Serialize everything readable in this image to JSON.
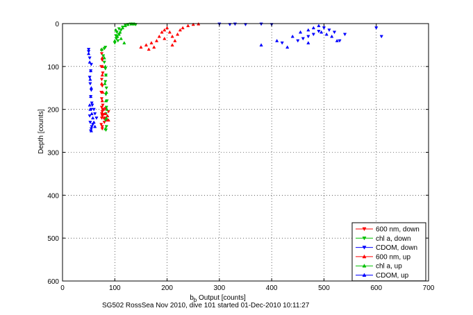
{
  "chart_data": {
    "type": "scatter",
    "title": "",
    "xlabel_main": "b",
    "xlabel_sub": "b",
    "xlabel_rest": " Output [counts]",
    "ylabel": "Depth [counts]",
    "xlim": [
      0,
      700
    ],
    "ylim": [
      0,
      600
    ],
    "y_reversed": true,
    "x_ticks": [
      "0",
      "100",
      "200",
      "300",
      "400",
      "500",
      "600",
      "700"
    ],
    "y_ticks": [
      "0",
      "100",
      "200",
      "300",
      "400",
      "500",
      "600"
    ],
    "grid": "dotted",
    "legend_position": "bottom-right",
    "caption": "SG502 RossSea Nov 2010, dive 101 started 01-Dec-2010 10:11:27",
    "series": [
      {
        "name": "600 nm, down",
        "color": "#ff0000",
        "marker": "triangle-down",
        "x": [
          75,
          76,
          74,
          77,
          75,
          76,
          74,
          75,
          77,
          76,
          75,
          74,
          76,
          75,
          77,
          75,
          76,
          80,
          84,
          88,
          78,
          80,
          76,
          82
        ],
        "y": [
          70,
          85,
          100,
          115,
          130,
          145,
          160,
          175,
          190,
          205,
          220,
          235,
          245,
          195,
          200,
          210,
          215,
          220,
          225,
          205,
          212,
          230,
          240,
          198
        ]
      },
      {
        "name": "chl a, down",
        "color": "#00c000",
        "marker": "triangle-down",
        "x": [
          75,
          78,
          80,
          82,
          83,
          82,
          84,
          83,
          85,
          84,
          83,
          82,
          84,
          83,
          82,
          80,
          100,
          103,
          108,
          112,
          115,
          120,
          125,
          130,
          135,
          140,
          108,
          104,
          102,
          106
        ],
        "y": [
          62,
          75,
          90,
          105,
          120,
          135,
          150,
          165,
          180,
          195,
          210,
          225,
          240,
          248,
          55,
          58,
          45,
          35,
          25,
          15,
          8,
          3,
          2,
          1,
          1,
          2,
          12,
          20,
          28,
          40
        ]
      },
      {
        "name": "CDOM, down",
        "color": "#0000ff",
        "marker": "triangle-down",
        "x": [
          50,
          52,
          55,
          54,
          52,
          53,
          55,
          54,
          56,
          55,
          52,
          53,
          55,
          57,
          60,
          62,
          65,
          58,
          56,
          54,
          50,
          300,
          320,
          330,
          350,
          380,
          400,
          450,
          470,
          480,
          490,
          500,
          510,
          520,
          540,
          600,
          610,
          530,
          460,
          420
        ],
        "y": [
          65,
          80,
          95,
          110,
          125,
          140,
          155,
          170,
          185,
          200,
          215,
          230,
          245,
          190,
          200,
          210,
          220,
          235,
          240,
          250,
          60,
          1,
          2,
          1,
          2,
          1,
          2,
          40,
          30,
          25,
          18,
          10,
          15,
          20,
          25,
          10,
          30,
          40,
          35,
          45
        ]
      },
      {
        "name": "600 nm, up",
        "color": "#ff0000",
        "marker": "triangle-up",
        "x": [
          75,
          76,
          77,
          76,
          75,
          77,
          76,
          78,
          82,
          86,
          80,
          88,
          150,
          160,
          170,
          180,
          185,
          190,
          195,
          200,
          205,
          210,
          215,
          220,
          225,
          230,
          240,
          250,
          260,
          165,
          175,
          195,
          210
        ],
        "y": [
          60,
          80,
          100,
          120,
          140,
          160,
          180,
          200,
          210,
          215,
          220,
          225,
          55,
          50,
          45,
          40,
          30,
          20,
          15,
          10,
          20,
          30,
          40,
          25,
          15,
          10,
          5,
          2,
          1,
          60,
          55,
          35,
          50
        ]
      },
      {
        "name": "chl a, up",
        "color": "#00c000",
        "marker": "triangle-up",
        "x": [
          75,
          80,
          82,
          83,
          81,
          84,
          83,
          85,
          84,
          82,
          100,
          105,
          110,
          115,
          120,
          125,
          132,
          138,
          102,
          108,
          112,
          118
        ],
        "y": [
          60,
          80,
          100,
          120,
          140,
          160,
          180,
          200,
          220,
          245,
          40,
          30,
          20,
          10,
          5,
          2,
          1,
          1,
          15,
          25,
          35,
          45
        ]
      },
      {
        "name": "CDOM, up",
        "color": "#0000ff",
        "marker": "triangle-up",
        "x": [
          50,
          52,
          54,
          53,
          55,
          54,
          52,
          56,
          58,
          60,
          62,
          55,
          53,
          410,
          440,
          455,
          470,
          480,
          495,
          505,
          515,
          525,
          490,
          470,
          380,
          430
        ],
        "y": [
          70,
          90,
          110,
          130,
          150,
          170,
          190,
          210,
          220,
          230,
          240,
          250,
          200,
          40,
          30,
          20,
          15,
          10,
          20,
          25,
          30,
          40,
          5,
          45,
          50,
          55
        ]
      }
    ]
  }
}
